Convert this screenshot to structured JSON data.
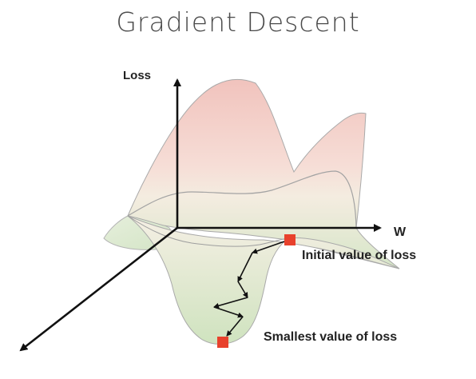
{
  "title": "Gradient Descent",
  "axes": {
    "y_label": "Loss",
    "x_label": "W"
  },
  "annotations": {
    "initial": "Initial value of loss",
    "smallest": "Smallest value of loss"
  },
  "colors": {
    "marker": "#e8412c",
    "surface_top": "#f2c6c0",
    "surface_bottom": "#dbe8cf",
    "axis": "#111111",
    "path": "#111111"
  }
}
